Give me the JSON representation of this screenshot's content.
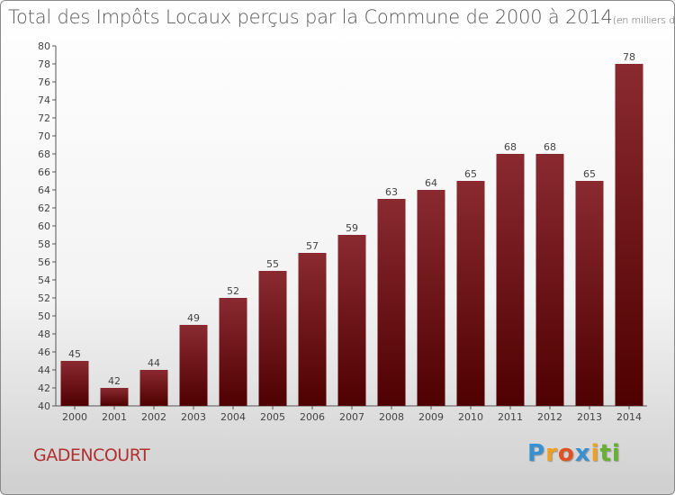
{
  "chart_data": {
    "type": "bar",
    "title": "Total des Impôts Locaux perçus par la Commune de 2000 à 2014",
    "unit_note": "(en milliers d'€)",
    "categories": [
      "2000",
      "2001",
      "2002",
      "2003",
      "2004",
      "2005",
      "2006",
      "2007",
      "2008",
      "2009",
      "2010",
      "2011",
      "2012",
      "2013",
      "2014"
    ],
    "values": [
      45,
      42,
      44,
      49,
      52,
      55,
      57,
      59,
      63,
      64,
      65,
      68,
      68,
      65,
      78
    ],
    "data_labels": [
      "45",
      "42",
      "44",
      "49",
      "52",
      "55",
      "57",
      "59",
      "63",
      "64",
      "65",
      "68",
      "68",
      "65",
      "78"
    ],
    "y_ticks": [
      "40",
      "42",
      "44",
      "46",
      "48",
      "50",
      "52",
      "54",
      "56",
      "58",
      "60",
      "62",
      "64",
      "66",
      "68",
      "70",
      "72",
      "74",
      "76",
      "78",
      "80"
    ],
    "xlabel": "",
    "ylabel": "",
    "ylim": [
      40,
      80
    ],
    "grid": false,
    "bar_color": "#7a1a1e"
  },
  "commune": "GADENCOURT",
  "logo": {
    "letters": [
      "P",
      "r",
      "o",
      "x",
      "i",
      "t",
      "i"
    ],
    "colors": [
      "#3a8fd0",
      "#f0a020",
      "#e05020",
      "#3a8fd0",
      "#f0a020",
      "#66b032",
      "#66b032"
    ]
  }
}
